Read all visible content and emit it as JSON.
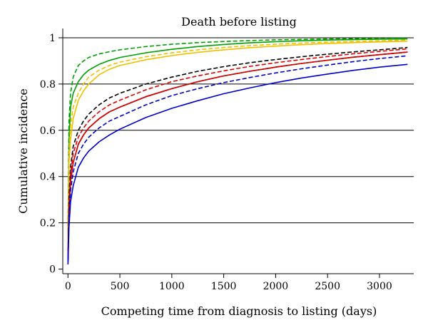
{
  "chart_data": {
    "type": "line",
    "title": "Death before listing",
    "xlabel": "Competing time from diagnosis to listing (days)",
    "ylabel": "Cumulative incidence",
    "xlim": [
      -50,
      3330
    ],
    "ylim": [
      -0.02,
      1.04
    ],
    "xticks": [
      "0",
      "500",
      "1000",
      "1500",
      "2000",
      "2500",
      "3000"
    ],
    "xtick_values": [
      0,
      500,
      1000,
      1500,
      2000,
      2500,
      3000
    ],
    "yticks": [
      "0",
      "0.2",
      "0.4",
      "0.6",
      "0.8",
      "1"
    ],
    "ytick_values": [
      0,
      0.2,
      0.4,
      0.6,
      0.8,
      1
    ],
    "grid": "horizontal",
    "legend": "none",
    "x": [
      0,
      10,
      25,
      50,
      100,
      150,
      200,
      300,
      400,
      500,
      750,
      1000,
      1250,
      1500,
      1750,
      2000,
      2250,
      2500,
      2750,
      3000,
      3270
    ],
    "series": [
      {
        "color": "#00a000",
        "dash": "dashed",
        "values": [
          0.13,
          0.64,
          0.76,
          0.83,
          0.88,
          0.9,
          0.915,
          0.93,
          0.94,
          0.948,
          0.962,
          0.972,
          0.979,
          0.984,
          0.988,
          0.991,
          0.993,
          0.995,
          0.996,
          0.997,
          0.998
        ]
      },
      {
        "color": "#00a000",
        "dash": "solid",
        "values": [
          0.11,
          0.55,
          0.7,
          0.76,
          0.81,
          0.84,
          0.86,
          0.885,
          0.902,
          0.915,
          0.935,
          0.95,
          0.962,
          0.971,
          0.978,
          0.983,
          0.987,
          0.99,
          0.992,
          0.994,
          0.995
        ]
      },
      {
        "color": "#f0c000",
        "dash": "dashed",
        "values": [
          0.11,
          0.5,
          0.62,
          0.7,
          0.76,
          0.8,
          0.83,
          0.86,
          0.88,
          0.895,
          0.918,
          0.935,
          0.948,
          0.958,
          0.966,
          0.972,
          0.977,
          0.981,
          0.984,
          0.987,
          0.99
        ]
      },
      {
        "color": "#f0c000",
        "dash": "solid",
        "values": [
          0.09,
          0.46,
          0.56,
          0.65,
          0.73,
          0.77,
          0.8,
          0.84,
          0.864,
          0.88,
          0.905,
          0.923,
          0.937,
          0.948,
          0.957,
          0.964,
          0.97,
          0.975,
          0.979,
          0.982,
          0.985
        ]
      },
      {
        "color": "#000000",
        "dash": "dashed",
        "values": [
          0.05,
          0.3,
          0.44,
          0.53,
          0.6,
          0.64,
          0.67,
          0.71,
          0.74,
          0.76,
          0.8,
          0.83,
          0.855,
          0.875,
          0.892,
          0.906,
          0.918,
          0.929,
          0.939,
          0.948,
          0.958
        ]
      },
      {
        "color": "#e00000",
        "dash": "dashed",
        "values": [
          0.04,
          0.27,
          0.41,
          0.5,
          0.57,
          0.61,
          0.64,
          0.68,
          0.71,
          0.73,
          0.775,
          0.81,
          0.835,
          0.857,
          0.876,
          0.892,
          0.906,
          0.919,
          0.931,
          0.941,
          0.952
        ]
      },
      {
        "color": "#000000",
        "dash": "solid",
        "values": [
          0.04,
          0.25,
          0.38,
          0.46,
          0.54,
          0.58,
          0.61,
          0.65,
          0.68,
          0.7,
          0.745,
          0.78,
          0.81,
          0.835,
          0.855,
          0.873,
          0.889,
          0.903,
          0.916,
          0.927,
          0.938
        ]
      },
      {
        "color": "#e00000",
        "dash": "solid",
        "values": [
          0.04,
          0.25,
          0.38,
          0.46,
          0.54,
          0.58,
          0.61,
          0.65,
          0.68,
          0.7,
          0.745,
          0.78,
          0.81,
          0.835,
          0.855,
          0.873,
          0.889,
          0.903,
          0.916,
          0.927,
          0.938
        ]
      },
      {
        "color": "#0000cc",
        "dash": "dashed",
        "values": [
          0.03,
          0.22,
          0.34,
          0.42,
          0.5,
          0.54,
          0.57,
          0.61,
          0.64,
          0.66,
          0.71,
          0.75,
          0.78,
          0.806,
          0.828,
          0.848,
          0.866,
          0.882,
          0.897,
          0.91,
          0.922
        ]
      },
      {
        "color": "#0000cc",
        "dash": "solid",
        "values": [
          0.02,
          0.18,
          0.29,
          0.36,
          0.44,
          0.48,
          0.51,
          0.55,
          0.58,
          0.605,
          0.655,
          0.695,
          0.728,
          0.758,
          0.783,
          0.806,
          0.826,
          0.843,
          0.859,
          0.873,
          0.885
        ]
      }
    ]
  }
}
